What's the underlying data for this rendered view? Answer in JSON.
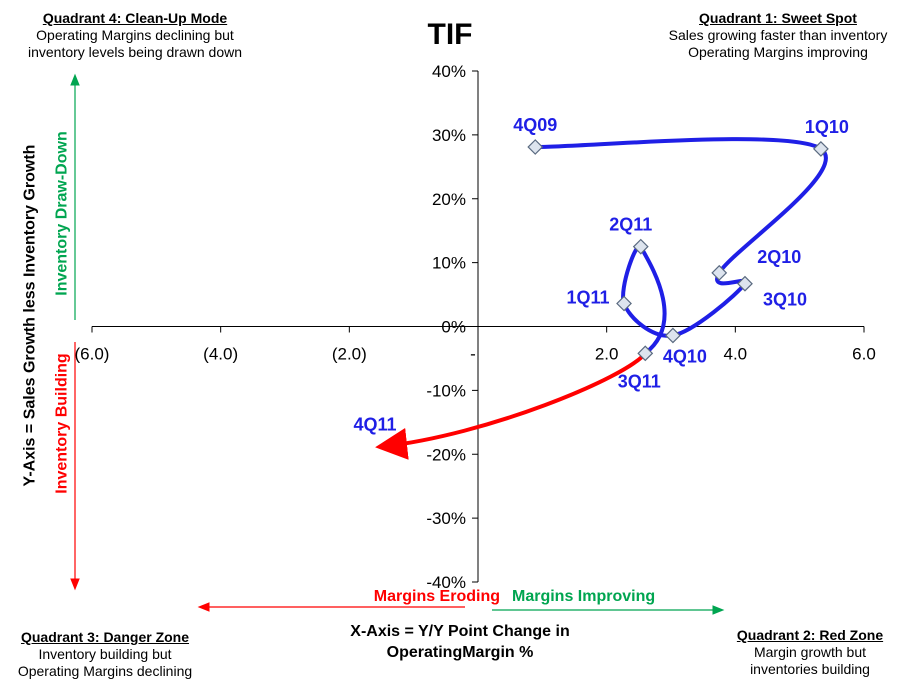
{
  "quadrants": {
    "q4": {
      "title": "Quadrant 4: Clean-Up Mode",
      "line1": "Operating Margins declining but",
      "line2": "inventory levels being drawn down"
    },
    "q1": {
      "title": "Quadrant 1: Sweet Spot",
      "line1": "Sales growing faster than inventory",
      "line2": "Operating Margins improving"
    },
    "q3": {
      "title": "Quadrant 3: Danger Zone",
      "line1": "Inventory building but",
      "line2": "Operating Margins declining"
    },
    "q2": {
      "title": "Quadrant 2: Red Zone",
      "line1": "Margin growth but",
      "line2": "inventories building"
    }
  },
  "annotations": {
    "draw_down": "Inventory Draw-Down",
    "building": "Inventory Building",
    "eroding": "Margins Eroding",
    "improving": "Margins Improving"
  },
  "colors": {
    "series": "#1f1fe6",
    "latest": "#ff0000",
    "good": "#00a550",
    "bad": "#ff0000"
  },
  "chart_data": {
    "type": "line",
    "title": "TIF",
    "xlabel": "X-Axis = Y/Y Point Change in OperatingMargin %",
    "ylabel": "Y-Axis = Sales Growth less Inventory Growth",
    "xlim": [
      -6,
      6
    ],
    "ylim": [
      -40,
      40
    ],
    "xticks": [
      -6,
      -4,
      -2,
      0,
      2,
      4,
      6
    ],
    "xtick_labels": [
      "(6.0)",
      "(4.0)",
      "(2.0)",
      "-",
      "2.0",
      "4.0",
      "6.0"
    ],
    "yticks": [
      40,
      30,
      20,
      10,
      0,
      -10,
      -20,
      -30,
      -40
    ],
    "ytick_labels": [
      "40%",
      "30%",
      "20%",
      "10%",
      "0%",
      "-10%",
      "-20%",
      "-30%",
      "-40%"
    ],
    "grid": false,
    "series": [
      {
        "name": "TIF",
        "points": [
          {
            "label": "4Q09",
            "x": 0.89,
            "y": 28.1
          },
          {
            "label": "1Q10",
            "x": 5.33,
            "y": 27.8
          },
          {
            "label": "2Q10",
            "x": 3.75,
            "y": 8.4
          },
          {
            "label": "3Q10",
            "x": 4.15,
            "y": 6.7
          },
          {
            "label": "4Q10",
            "x": 3.03,
            "y": -1.4
          },
          {
            "label": "1Q11",
            "x": 2.27,
            "y": 3.6
          },
          {
            "label": "2Q11",
            "x": 2.53,
            "y": 12.5
          },
          {
            "label": "3Q11",
            "x": 2.6,
            "y": -4.2
          },
          {
            "label": "4Q11",
            "x": -1.6,
            "y": -19.4
          }
        ]
      }
    ]
  }
}
